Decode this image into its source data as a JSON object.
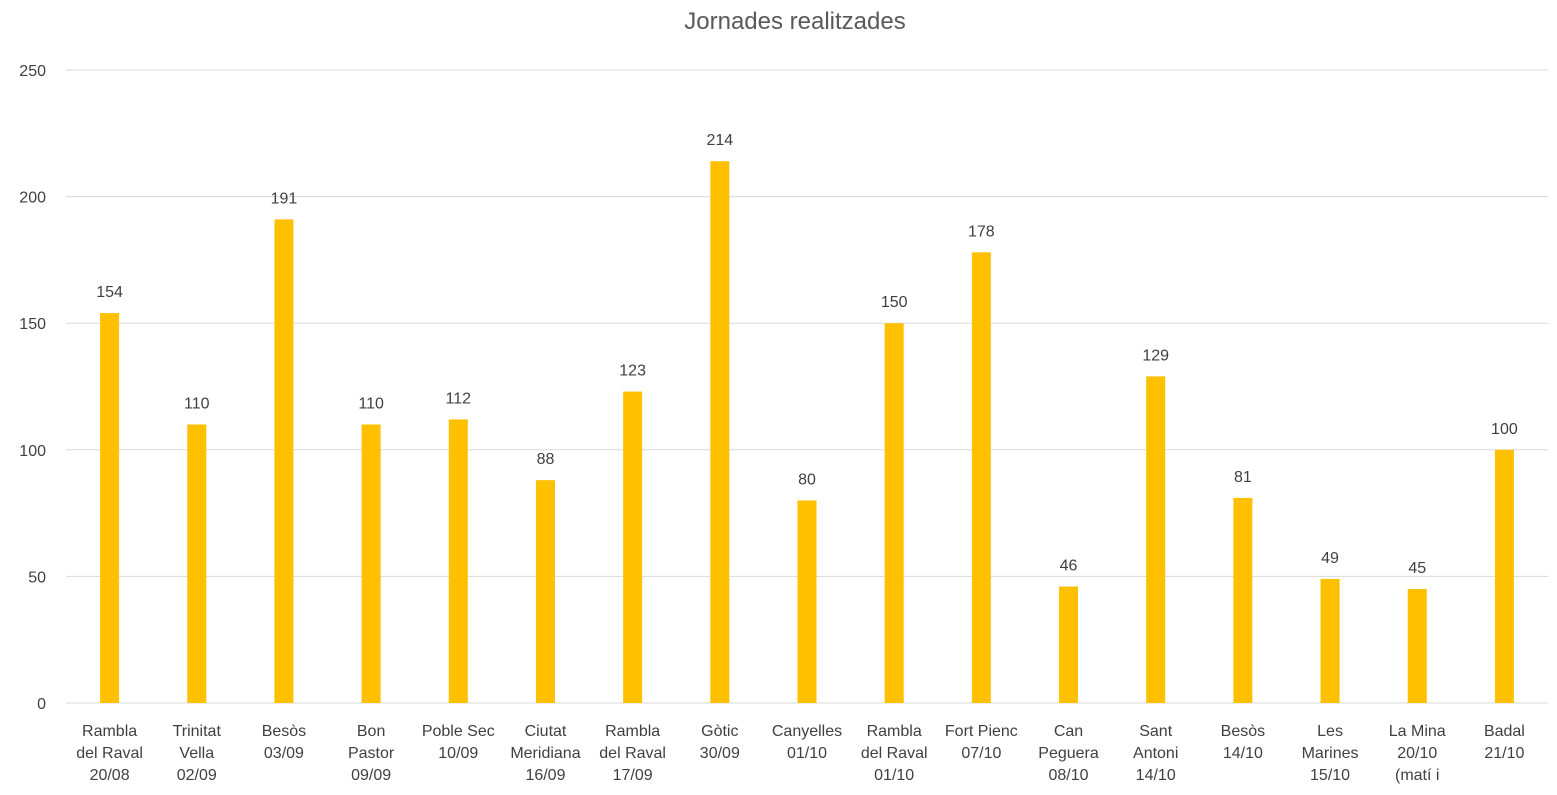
{
  "chart_data": {
    "type": "bar",
    "title": "Jornades realitzades",
    "xlabel": "",
    "ylabel": "",
    "ylim": [
      0,
      250
    ],
    "yticks": [
      0,
      50,
      100,
      150,
      200,
      250
    ],
    "grid": true,
    "bar_color": "#ffc000",
    "categories": [
      [
        "Rambla",
        "del Raval",
        "20/08"
      ],
      [
        "Trinitat",
        "Vella",
        "02/09"
      ],
      [
        "Besòs",
        "03/09"
      ],
      [
        "Bon",
        "Pastor",
        "09/09"
      ],
      [
        "Poble Sec",
        "10/09"
      ],
      [
        "Ciutat",
        "Meridiana",
        "16/09"
      ],
      [
        "Rambla",
        "del Raval",
        "17/09"
      ],
      [
        "Gòtic",
        "30/09"
      ],
      [
        "Canyelles",
        "01/10"
      ],
      [
        "Rambla",
        "del Raval",
        "01/10"
      ],
      [
        "Fort Pienc",
        "07/10"
      ],
      [
        "Can",
        "Peguera",
        "08/10"
      ],
      [
        "Sant",
        "Antoni",
        "14/10"
      ],
      [
        "Besòs",
        "14/10"
      ],
      [
        "Les",
        "Marines",
        "15/10"
      ],
      [
        "La Mina",
        "20/10",
        "(matí i"
      ],
      [
        "Badal",
        "21/10"
      ]
    ],
    "values": [
      154,
      110,
      191,
      110,
      112,
      88,
      123,
      214,
      80,
      150,
      178,
      46,
      129,
      81,
      49,
      45,
      100
    ]
  }
}
